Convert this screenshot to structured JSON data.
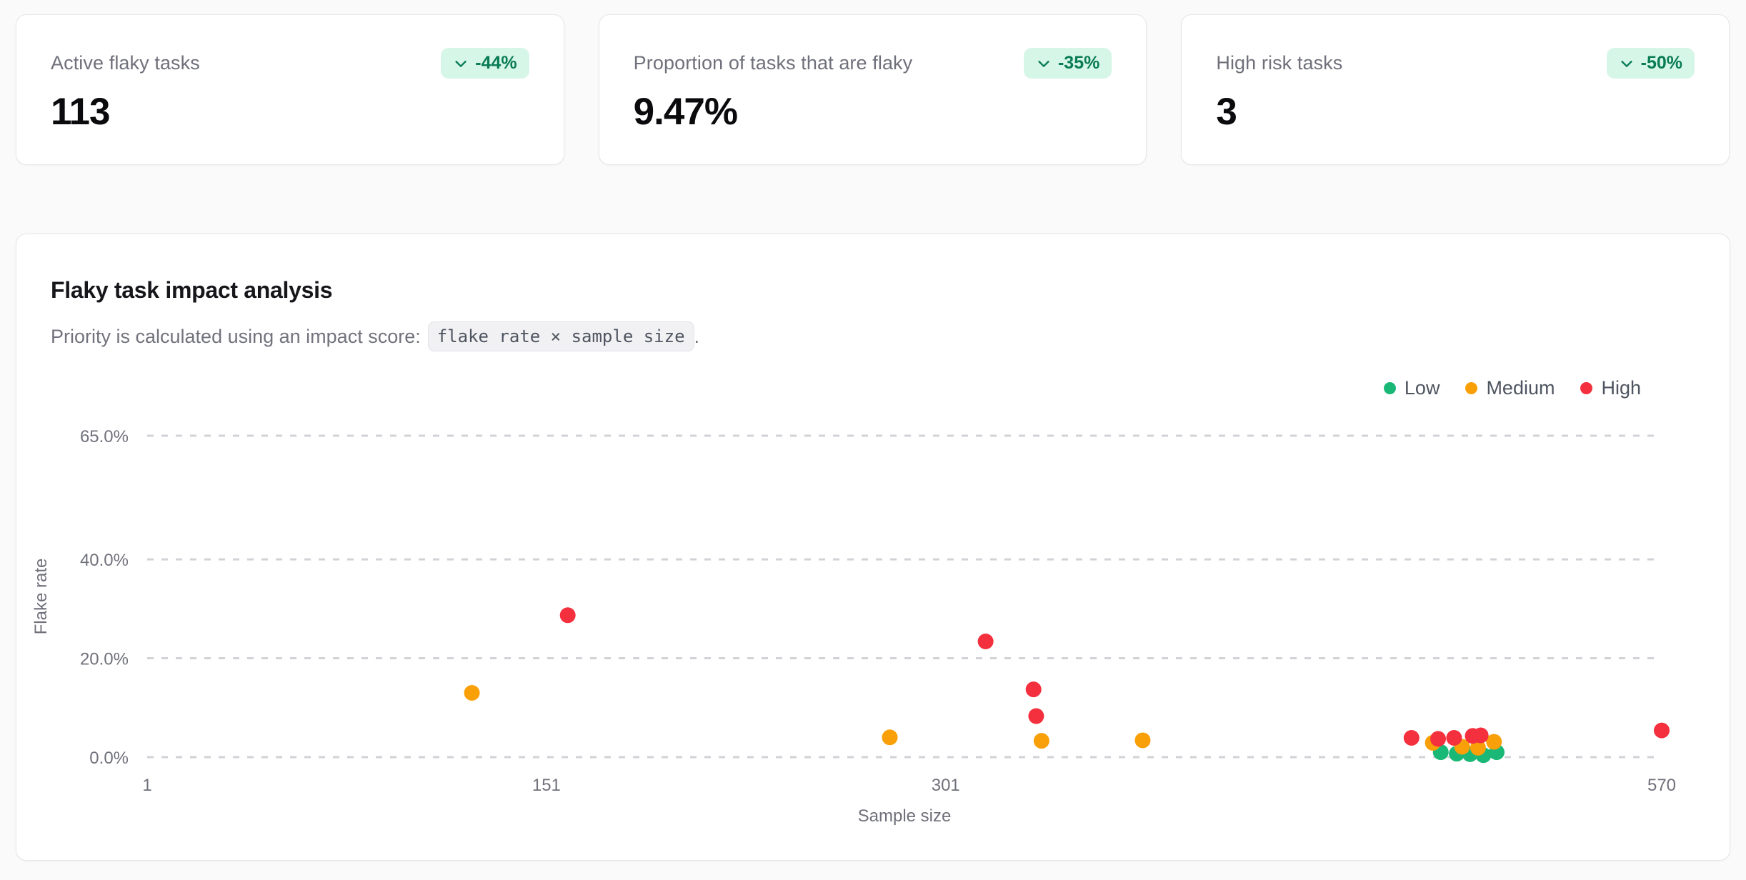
{
  "page": {
    "background": "#fafafa"
  },
  "stat_cards": [
    {
      "label": "Active flaky tasks",
      "value": "113",
      "badge": "-44%",
      "badge_icon": "chevron-down-icon"
    },
    {
      "label": "Proportion of tasks that are flaky",
      "value": "9.47%",
      "badge": "-35%",
      "badge_icon": "chevron-down-icon"
    },
    {
      "label": "High risk tasks",
      "value": "3",
      "badge": "-50%",
      "badge_icon": "chevron-down-icon"
    }
  ],
  "badge_colors": {
    "background": "#d6f6e8",
    "text": "#0a7c55"
  },
  "chart_card": {
    "title": "Flaky task impact analysis",
    "subtitle_prefix": "Priority is calculated using an impact score:",
    "subtitle_code": "flake rate × sample size",
    "subtitle_suffix": "."
  },
  "legend": [
    {
      "label": "Low",
      "color": "#1ab877"
    },
    {
      "label": "Medium",
      "color": "#f9a008"
    },
    {
      "label": "High",
      "color": "#f4303e"
    }
  ],
  "chart_data": {
    "type": "scatter",
    "xlabel": "Sample size",
    "ylabel": "Flake rate",
    "xlim": [
      1,
      570
    ],
    "ylim": [
      0,
      65
    ],
    "x_ticks": [
      1,
      151,
      301,
      570
    ],
    "y_ticks": [
      0,
      20,
      40,
      65
    ],
    "y_tick_suffix": "%",
    "grid": "horizontal-dashed",
    "gridline_color": "#d2d2d7",
    "legend_position": "top-right",
    "point_radius": 11,
    "series": [
      {
        "name": "Low",
        "color": "#1ab877",
        "points": [
          [
            487,
            1.0
          ],
          [
            493,
            0.7
          ],
          [
            498,
            0.6
          ],
          [
            503,
            0.4
          ],
          [
            508,
            1.0
          ]
        ]
      },
      {
        "name": "Medium",
        "color": "#f9a008",
        "points": [
          [
            123,
            13.0
          ],
          [
            280,
            4.0
          ],
          [
            337,
            3.3
          ],
          [
            375,
            3.4
          ],
          [
            484,
            2.9
          ],
          [
            495,
            2.1
          ],
          [
            501,
            1.9
          ],
          [
            507,
            3.1
          ]
        ]
      },
      {
        "name": "High",
        "color": "#f4303e",
        "points": [
          [
            159,
            28.7
          ],
          [
            316,
            23.4
          ],
          [
            334,
            13.7
          ],
          [
            335,
            8.3
          ],
          [
            476,
            3.9
          ],
          [
            486,
            3.7
          ],
          [
            492,
            3.9
          ],
          [
            499,
            4.3
          ],
          [
            502,
            4.4
          ],
          [
            570,
            5.4
          ]
        ]
      }
    ]
  }
}
